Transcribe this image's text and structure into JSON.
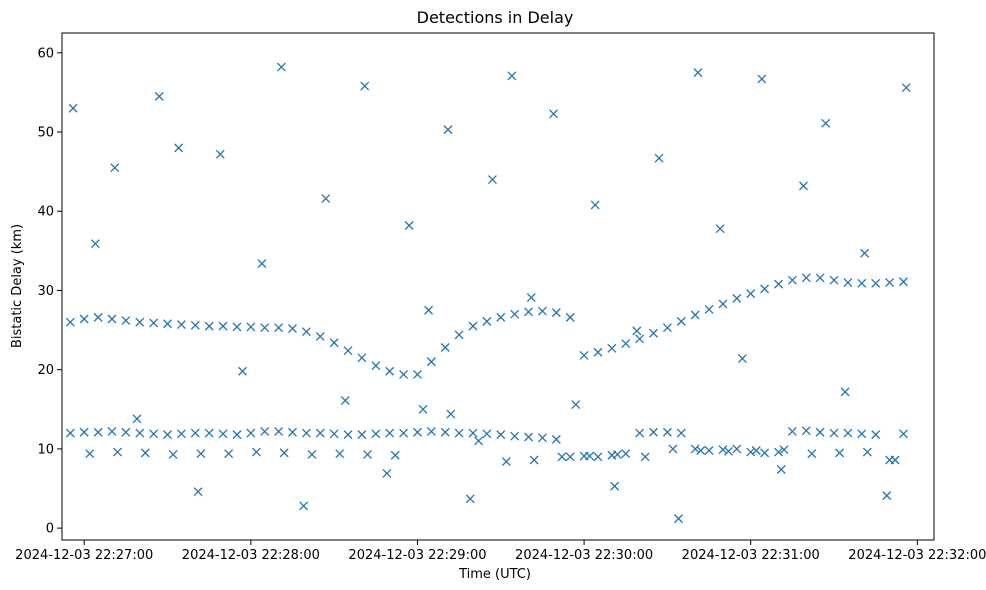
{
  "chart_data": {
    "type": "scatter",
    "title": "Detections in Delay",
    "xlabel": "Time (UTC)",
    "ylabel": "Bistatic Delay (km)",
    "x_tick_labels": [
      "2024-12-03 22:27:00",
      "2024-12-03 22:28:00",
      "2024-12-03 22:29:00",
      "2024-12-03 22:30:00",
      "2024-12-03 22:31:00",
      "2024-12-03 22:32:00"
    ],
    "y_ticks": [
      0,
      10,
      20,
      30,
      40,
      50,
      60
    ],
    "xlim": [
      "2024-12-03 22:26:52",
      "2024-12-03 22:32:06"
    ],
    "ylim": [
      -1.5,
      62.5
    ],
    "grid": false,
    "legend": "none",
    "marker": "x",
    "color": "#1f77b4",
    "series": [
      {
        "x": [
          "2024-12-03 22:26:55",
          "2024-12-03 22:27:00",
          "2024-12-03 22:27:05",
          "2024-12-03 22:27:10",
          "2024-12-03 22:27:15",
          "2024-12-03 22:27:20",
          "2024-12-03 22:27:25",
          "2024-12-03 22:27:30",
          "2024-12-03 22:27:35",
          "2024-12-03 22:27:40",
          "2024-12-03 22:27:45",
          "2024-12-03 22:27:50",
          "2024-12-03 22:27:55",
          "2024-12-03 22:28:00",
          "2024-12-03 22:28:05",
          "2024-12-03 22:28:10",
          "2024-12-03 22:28:15",
          "2024-12-03 22:28:20",
          "2024-12-03 22:28:25",
          "2024-12-03 22:28:30",
          "2024-12-03 22:28:35",
          "2024-12-03 22:28:40",
          "2024-12-03 22:28:45",
          "2024-12-03 22:28:50",
          "2024-12-03 22:28:55",
          "2024-12-03 22:29:00",
          "2024-12-03 22:29:05",
          "2024-12-03 22:29:10",
          "2024-12-03 22:29:15",
          "2024-12-03 22:29:20",
          "2024-12-03 22:29:25",
          "2024-12-03 22:29:30",
          "2024-12-03 22:29:35",
          "2024-12-03 22:29:40",
          "2024-12-03 22:29:45",
          "2024-12-03 22:29:50",
          "2024-12-03 22:29:55",
          "2024-12-03 22:30:00",
          "2024-12-03 22:30:05",
          "2024-12-03 22:30:10",
          "2024-12-03 22:30:15",
          "2024-12-03 22:30:20",
          "2024-12-03 22:30:25",
          "2024-12-03 22:30:30",
          "2024-12-03 22:30:35",
          "2024-12-03 22:30:40",
          "2024-12-03 22:30:45",
          "2024-12-03 22:30:50",
          "2024-12-03 22:30:55",
          "2024-12-03 22:31:00",
          "2024-12-03 22:31:05",
          "2024-12-03 22:31:10",
          "2024-12-03 22:31:15",
          "2024-12-03 22:31:20",
          "2024-12-03 22:31:25",
          "2024-12-03 22:31:30",
          "2024-12-03 22:31:35",
          "2024-12-03 22:31:40",
          "2024-12-03 22:31:45",
          "2024-12-03 22:31:50",
          "2024-12-03 22:31:55",
          "2024-12-03 22:26:55",
          "2024-12-03 22:27:00",
          "2024-12-03 22:27:05",
          "2024-12-03 22:27:10",
          "2024-12-03 22:27:15",
          "2024-12-03 22:27:20",
          "2024-12-03 22:27:25",
          "2024-12-03 22:27:30",
          "2024-12-03 22:27:35",
          "2024-12-03 22:27:40",
          "2024-12-03 22:27:45",
          "2024-12-03 22:27:50",
          "2024-12-03 22:27:55",
          "2024-12-03 22:28:00",
          "2024-12-03 22:28:05",
          "2024-12-03 22:28:10",
          "2024-12-03 22:28:15",
          "2024-12-03 22:28:20",
          "2024-12-03 22:28:25",
          "2024-12-03 22:28:30",
          "2024-12-03 22:28:35",
          "2024-12-03 22:28:40",
          "2024-12-03 22:28:45",
          "2024-12-03 22:28:50",
          "2024-12-03 22:28:55",
          "2024-12-03 22:29:00",
          "2024-12-03 22:29:05",
          "2024-12-03 22:29:10",
          "2024-12-03 22:29:15",
          "2024-12-03 22:29:20",
          "2024-12-03 22:29:25",
          "2024-12-03 22:29:30",
          "2024-12-03 22:29:35",
          "2024-12-03 22:29:40",
          "2024-12-03 22:29:45",
          "2024-12-03 22:29:50",
          "2024-12-03 22:29:55",
          "2024-12-03 22:30:00",
          "2024-12-03 22:30:05",
          "2024-12-03 22:30:10",
          "2024-12-03 22:30:15",
          "2024-12-03 22:30:20",
          "2024-12-03 22:30:25",
          "2024-12-03 22:30:30",
          "2024-12-03 22:30:35",
          "2024-12-03 22:30:40",
          "2024-12-03 22:30:45",
          "2024-12-03 22:30:50",
          "2024-12-03 22:30:55",
          "2024-12-03 22:31:00",
          "2024-12-03 22:31:05",
          "2024-12-03 22:31:10",
          "2024-12-03 22:31:15",
          "2024-12-03 22:31:20",
          "2024-12-03 22:31:25",
          "2024-12-03 22:31:30",
          "2024-12-03 22:31:35",
          "2024-12-03 22:31:40",
          "2024-12-03 22:31:45",
          "2024-12-03 22:31:50",
          "2024-12-03 22:31:55",
          "2024-12-03 22:27:02",
          "2024-12-03 22:27:12",
          "2024-12-03 22:27:22",
          "2024-12-03 22:27:32",
          "2024-12-03 22:27:42",
          "2024-12-03 22:27:52",
          "2024-12-03 22:28:02",
          "2024-12-03 22:28:12",
          "2024-12-03 22:28:22",
          "2024-12-03 22:28:32",
          "2024-12-03 22:28:42",
          "2024-12-03 22:28:52",
          "2024-12-03 22:29:02",
          "2024-12-03 22:29:12",
          "2024-12-03 22:29:22",
          "2024-12-03 22:29:32",
          "2024-12-03 22:29:42",
          "2024-12-03 22:29:52",
          "2024-12-03 22:30:02",
          "2024-12-03 22:30:12",
          "2024-12-03 22:30:22",
          "2024-12-03 22:30:32",
          "2024-12-03 22:30:42",
          "2024-12-03 22:30:52",
          "2024-12-03 22:31:02",
          "2024-12-03 22:31:12",
          "2024-12-03 22:31:22",
          "2024-12-03 22:31:32",
          "2024-12-03 22:31:42",
          "2024-12-03 22:31:52",
          "2024-12-03 22:26:56",
          "2024-12-03 22:27:04",
          "2024-12-03 22:27:11",
          "2024-12-03 22:27:19",
          "2024-12-03 22:27:27",
          "2024-12-03 22:27:34",
          "2024-12-03 22:27:41",
          "2024-12-03 22:27:49",
          "2024-12-03 22:27:57",
          "2024-12-03 22:28:04",
          "2024-12-03 22:28:11",
          "2024-12-03 22:28:19",
          "2024-12-03 22:28:27",
          "2024-12-03 22:28:34",
          "2024-12-03 22:28:41",
          "2024-12-03 22:28:49",
          "2024-12-03 22:28:57",
          "2024-12-03 22:29:04",
          "2024-12-03 22:29:11",
          "2024-12-03 22:29:19",
          "2024-12-03 22:29:27",
          "2024-12-03 22:29:34",
          "2024-12-03 22:29:41",
          "2024-12-03 22:29:49",
          "2024-12-03 22:29:57",
          "2024-12-03 22:30:04",
          "2024-12-03 22:30:11",
          "2024-12-03 22:30:19",
          "2024-12-03 22:30:27",
          "2024-12-03 22:30:34",
          "2024-12-03 22:30:41",
          "2024-12-03 22:30:49",
          "2024-12-03 22:30:57",
          "2024-12-03 22:31:04",
          "2024-12-03 22:31:11",
          "2024-12-03 22:31:19",
          "2024-12-03 22:31:27",
          "2024-12-03 22:31:34",
          "2024-12-03 22:31:41",
          "2024-12-03 22:31:49",
          "2024-12-03 22:31:56"
        ],
        "y": [
          26.0,
          26.4,
          26.6,
          26.4,
          26.2,
          26.0,
          25.9,
          25.8,
          25.7,
          25.6,
          25.5,
          25.5,
          25.4,
          25.4,
          25.3,
          25.3,
          25.2,
          24.8,
          24.2,
          23.4,
          22.4,
          21.5,
          20.5,
          19.8,
          19.4,
          19.4,
          21.0,
          22.8,
          24.4,
          25.5,
          26.1,
          26.6,
          27.0,
          27.3,
          27.4,
          27.2,
          26.6,
          21.8,
          22.2,
          22.7,
          23.3,
          23.9,
          24.6,
          25.3,
          26.1,
          26.9,
          27.6,
          28.3,
          29.0,
          29.6,
          30.2,
          30.8,
          31.3,
          31.6,
          31.6,
          31.3,
          31.0,
          30.9,
          30.9,
          31.0,
          31.1,
          12.0,
          12.1,
          12.1,
          12.2,
          12.1,
          12.0,
          11.9,
          11.8,
          11.9,
          12.0,
          12.0,
          11.9,
          11.8,
          12.0,
          12.2,
          12.2,
          12.1,
          12.0,
          12.0,
          11.9,
          11.8,
          11.8,
          11.9,
          12.0,
          12.0,
          12.1,
          12.2,
          12.1,
          12.0,
          12.0,
          11.9,
          11.8,
          11.6,
          11.5,
          11.4,
          11.2,
          9.0,
          9.1,
          9.0,
          9.2,
          9.4,
          12.0,
          12.1,
          12.1,
          12.0,
          10.0,
          9.8,
          9.9,
          10.0,
          9.6,
          9.5,
          9.6,
          12.2,
          12.3,
          12.1,
          12.0,
          12.0,
          11.9,
          11.8,
          8.6,
          11.9,
          9.4,
          9.6,
          9.5,
          9.3,
          9.4,
          9.4,
          9.6,
          9.5,
          9.3,
          9.4,
          9.3,
          9.2,
          15.0,
          14.4,
          11.0,
          8.4,
          8.6,
          9.0,
          9.1,
          9.3,
          9.0,
          10.0,
          9.8,
          9.7,
          9.8,
          9.9,
          9.4,
          9.5,
          9.6,
          8.6,
          53.0,
          35.9,
          45.5,
          13.8,
          54.5,
          48.0,
          4.6,
          47.2,
          19.8,
          33.4,
          58.2,
          2.8,
          41.6,
          16.1,
          55.8,
          6.9,
          38.2,
          27.5,
          50.3,
          3.7,
          44.0,
          57.1,
          29.1,
          52.3,
          15.6,
          40.8,
          5.3,
          24.9,
          46.7,
          1.2,
          57.5,
          37.8,
          21.4,
          56.7,
          7.4,
          43.2,
          51.1,
          17.2,
          34.7,
          4.1,
          55.6
        ]
      }
    ]
  }
}
